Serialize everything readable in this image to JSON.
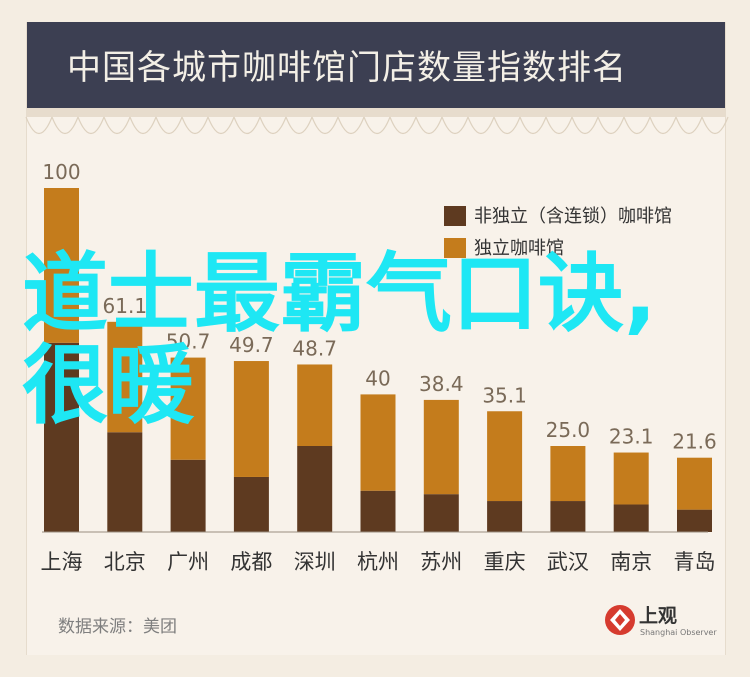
{
  "header": {
    "title": "中国各城市咖啡馆门店数量指数排名"
  },
  "legend": {
    "items": [
      {
        "label": "非独立（含连锁）咖啡馆",
        "color": "#5e3a20"
      },
      {
        "label": "独立咖啡馆",
        "color": "#c47c1c"
      }
    ]
  },
  "chart_data": {
    "type": "bar",
    "stacked": true,
    "categories": [
      "上海",
      "北京",
      "广州",
      "成都",
      "深圳",
      "杭州",
      "苏州",
      "重庆",
      "武汉",
      "南京",
      "青岛"
    ],
    "totals_labels": [
      "100",
      "61.1",
      "50.7",
      "49.7",
      "48.7",
      "40",
      "38.4",
      "35.1",
      "25.0",
      "23.1",
      "21.6"
    ],
    "series": [
      {
        "name": "非独立（含连锁）咖啡馆",
        "color": "#5e3a20",
        "values": [
          55,
          29,
          21,
          16,
          25,
          12,
          11,
          9,
          9,
          8,
          6.5
        ]
      },
      {
        "name": "独立咖啡馆",
        "color": "#c47c1c",
        "values": [
          45,
          32.1,
          29.7,
          33.7,
          23.7,
          28,
          27.4,
          26.1,
          16,
          15.1,
          15.1
        ]
      }
    ],
    "ylim": [
      0,
      100
    ],
    "grid": false
  },
  "source": {
    "text": "数据来源：美团"
  },
  "logo": {
    "name": "上观",
    "sub": "Shanghai Observer",
    "color": "#d63b2f"
  },
  "overlay": {
    "text": "道士最霸气口诀,很暖"
  }
}
